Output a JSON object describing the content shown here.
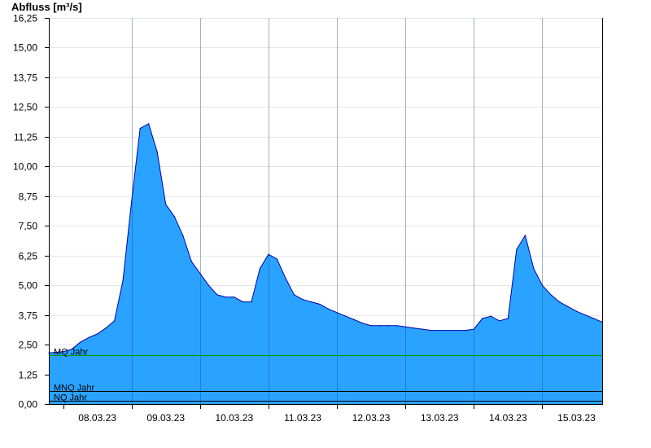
{
  "chart_data": {
    "type": "area",
    "ylabel": "Abfluss [m³/s]",
    "ylim": [
      0,
      16.25
    ],
    "yticks": [
      0,
      1.25,
      2.5,
      3.75,
      5,
      6.25,
      7.5,
      8.75,
      10,
      11.25,
      12.5,
      13.75,
      15,
      16.25
    ],
    "ytick_labels": [
      "0,00",
      "1,25",
      "2,50",
      "3,75",
      "5,00",
      "6,25",
      "7,50",
      "8,75",
      "10,00",
      "11,25",
      "12,50",
      "13,75",
      "15,00",
      "16,25"
    ],
    "xlim": [
      "2023-03-07T19:00",
      "2023-03-15T21:00"
    ],
    "xtick_dates": [
      "2023-03-08",
      "2023-03-09",
      "2023-03-10",
      "2023-03-11",
      "2023-03-12",
      "2023-03-13",
      "2023-03-14",
      "2023-03-15"
    ],
    "x_labels": [
      "08.03.23",
      "09.03.23",
      "10.03.23",
      "11.03.23",
      "12.03.23",
      "13.03.23",
      "14.03.23",
      "15.03.23"
    ],
    "grid": true,
    "fill_color": "#29a3ff",
    "line_color": "#0000aa",
    "series": [
      {
        "x": [
          "2023-03-07T19:00",
          "2023-03-08T00:00",
          "2023-03-08T03:00",
          "2023-03-08T06:00",
          "2023-03-08T09:00",
          "2023-03-08T12:00",
          "2023-03-08T15:00",
          "2023-03-08T18:00",
          "2023-03-08T21:00",
          "2023-03-09T00:00",
          "2023-03-09T03:00",
          "2023-03-09T06:00",
          "2023-03-09T09:00",
          "2023-03-09T12:00",
          "2023-03-09T15:00",
          "2023-03-09T18:00",
          "2023-03-09T21:00",
          "2023-03-10T00:00",
          "2023-03-10T03:00",
          "2023-03-10T06:00",
          "2023-03-10T09:00",
          "2023-03-10T12:00",
          "2023-03-10T15:00",
          "2023-03-10T18:00",
          "2023-03-10T21:00",
          "2023-03-11T00:00",
          "2023-03-11T03:00",
          "2023-03-11T06:00",
          "2023-03-11T09:00",
          "2023-03-11T12:00",
          "2023-03-11T15:00",
          "2023-03-11T18:00",
          "2023-03-11T21:00",
          "2023-03-12T00:00",
          "2023-03-12T03:00",
          "2023-03-12T06:00",
          "2023-03-12T09:00",
          "2023-03-12T12:00",
          "2023-03-12T15:00",
          "2023-03-12T18:00",
          "2023-03-12T21:00",
          "2023-03-13T00:00",
          "2023-03-13T03:00",
          "2023-03-13T06:00",
          "2023-03-13T09:00",
          "2023-03-13T12:00",
          "2023-03-13T15:00",
          "2023-03-13T18:00",
          "2023-03-13T21:00",
          "2023-03-14T00:00",
          "2023-03-14T03:00",
          "2023-03-14T06:00",
          "2023-03-14T09:00",
          "2023-03-14T12:00",
          "2023-03-14T15:00",
          "2023-03-14T18:00",
          "2023-03-14T21:00",
          "2023-03-15T00:00",
          "2023-03-15T03:00",
          "2023-03-15T06:00",
          "2023-03-15T09:00",
          "2023-03-15T12:00",
          "2023-03-15T15:00",
          "2023-03-15T18:00",
          "2023-03-15T21:00"
        ],
        "y": [
          2.15,
          2.2,
          2.3,
          2.6,
          2.8,
          2.95,
          3.2,
          3.5,
          5.2,
          8.5,
          11.6,
          11.8,
          10.6,
          8.4,
          7.9,
          7.1,
          6.0,
          5.5,
          5.0,
          4.6,
          4.5,
          4.5,
          4.3,
          4.3,
          5.7,
          6.3,
          6.1,
          5.3,
          4.6,
          4.4,
          4.3,
          4.2,
          4.0,
          3.85,
          3.7,
          3.55,
          3.4,
          3.3,
          3.3,
          3.3,
          3.3,
          3.25,
          3.2,
          3.15,
          3.1,
          3.1,
          3.1,
          3.1,
          3.1,
          3.15,
          3.6,
          3.7,
          3.5,
          3.6,
          6.5,
          7.1,
          5.7,
          5.0,
          4.6,
          4.3,
          4.1,
          3.9,
          3.75,
          3.6,
          3.45
        ]
      }
    ],
    "reference_lines": [
      {
        "label": "MQ Jahr",
        "value": 2.05,
        "color": "#00a000"
      },
      {
        "label": "MNQ Jahr",
        "value": 0.55,
        "color": "#000000"
      },
      {
        "label": "NQ Jahr",
        "value": 0.15,
        "color": "#000000"
      }
    ]
  }
}
